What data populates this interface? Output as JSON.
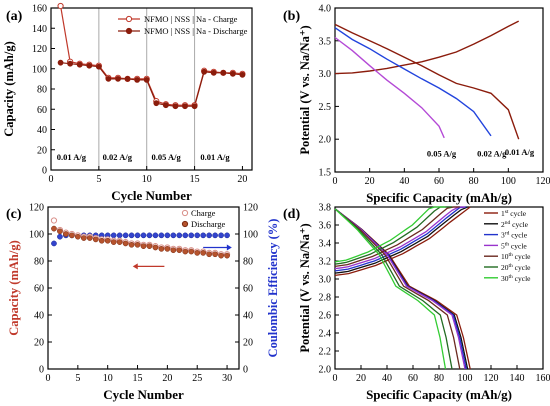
{
  "chart_data": [
    {
      "panel": "(a)",
      "type": "line",
      "xlabel": "Cycle Number",
      "ylabel": "Capacity (mAh/g)",
      "xlim": [
        0,
        21
      ],
      "ylim": [
        0,
        160
      ],
      "xticks": [
        0,
        5,
        10,
        15,
        20
      ],
      "yticks": [
        0,
        20,
        40,
        60,
        80,
        100,
        120,
        140,
        160
      ],
      "legend_position": "top-right",
      "colors": {
        "charge": "#c0392b",
        "discharge": "#8b1c0c"
      },
      "series": [
        {
          "name": "NFMO | NSS | Na - Charge",
          "marker": "open-circle",
          "x": [
            1,
            2,
            3,
            4,
            5,
            6,
            7,
            8,
            9,
            10,
            11,
            12,
            13,
            14,
            15,
            16,
            17,
            18,
            19,
            20
          ],
          "y": [
            162,
            107,
            105,
            104,
            103,
            91,
            91,
            90,
            90,
            90,
            68,
            65,
            64,
            64,
            64,
            98,
            97,
            96,
            96,
            95
          ]
        },
        {
          "name": "NFMO | NSS | Na - Discharge",
          "marker": "filled-circle",
          "x": [
            1,
            2,
            3,
            4,
            5,
            6,
            7,
            8,
            9,
            10,
            11,
            12,
            13,
            14,
            15,
            16,
            17,
            18,
            19,
            20
          ],
          "y": [
            106,
            105,
            104,
            103,
            102,
            90,
            90,
            90,
            89,
            89,
            66,
            64,
            63,
            63,
            63,
            97,
            96,
            96,
            95,
            94
          ]
        }
      ],
      "dividers": [
        5,
        10,
        15
      ],
      "annotations": [
        "0.01 A/g",
        "0.02 A/g",
        "0.05 A/g",
        "0.01 A/g"
      ]
    },
    {
      "panel": "(b)",
      "type": "line",
      "xlabel": "Specific Capacity (mAh/g)",
      "ylabel": "Potential (V vs. Na/Na⁺)",
      "xlim": [
        0,
        120
      ],
      "ylim": [
        1.5,
        4.0
      ],
      "xticks": [
        0,
        20,
        40,
        60,
        80,
        100,
        120
      ],
      "yticks": [
        1.5,
        2.0,
        2.5,
        3.0,
        3.5,
        4.0
      ],
      "series": [
        {
          "name": "0.01 A/g charge",
          "color": "#8b1c0c",
          "x": [
            0,
            10,
            20,
            30,
            40,
            50,
            60,
            70,
            80,
            90,
            100,
            106
          ],
          "y": [
            3.0,
            3.01,
            3.04,
            3.08,
            3.13,
            3.18,
            3.25,
            3.33,
            3.45,
            3.58,
            3.72,
            3.8
          ]
        },
        {
          "name": "0.01 A/g discharge",
          "color": "#8b1c0c",
          "x": [
            0,
            10,
            20,
            30,
            40,
            50,
            60,
            70,
            80,
            90,
            100,
            106
          ],
          "y": [
            3.75,
            3.62,
            3.5,
            3.38,
            3.25,
            3.12,
            2.98,
            2.85,
            2.78,
            2.7,
            2.45,
            2.0
          ]
        },
        {
          "name": "0.02 A/g",
          "color": "#2244dd",
          "x": [
            0,
            10,
            20,
            30,
            40,
            50,
            60,
            70,
            80,
            90
          ],
          "y": [
            3.7,
            3.52,
            3.38,
            3.22,
            3.07,
            2.92,
            2.78,
            2.62,
            2.42,
            2.05
          ]
        },
        {
          "name": "0.05 A/g",
          "color": "#b44ad6",
          "x": [
            0,
            10,
            20,
            30,
            40,
            50,
            60,
            63
          ],
          "y": [
            3.55,
            3.35,
            3.12,
            2.9,
            2.7,
            2.48,
            2.2,
            2.02
          ]
        }
      ],
      "annotations": [
        "0.05 A/g",
        "0.02 A/g",
        "0.01 A/g"
      ]
    },
    {
      "panel": "(c)",
      "type": "scatter",
      "xlabel": "Cycle Number",
      "ylabel": "Capacity (mAh/g)",
      "y2label": "Coulombic Efficiency (%)",
      "xlim": [
        0,
        32
      ],
      "ylim": [
        0,
        120
      ],
      "y2lim": [
        0,
        120
      ],
      "xticks": [
        0,
        5,
        10,
        15,
        20,
        25,
        30
      ],
      "yticks": [
        0,
        20,
        40,
        60,
        80,
        100,
        120
      ],
      "y2ticks": [
        0,
        20,
        40,
        60,
        80,
        100,
        120
      ],
      "legend_position": "top-right",
      "colors": {
        "charge": "#d9908a",
        "discharge": "#b5532d",
        "efficiency": "#3344cc"
      },
      "series": [
        {
          "name": "Charge",
          "axis": "left",
          "x": [
            1,
            2,
            3,
            4,
            5,
            6,
            7,
            8,
            9,
            10,
            11,
            12,
            13,
            14,
            15,
            16,
            17,
            18,
            19,
            20,
            21,
            22,
            23,
            24,
            25,
            26,
            27,
            28,
            29,
            30
          ],
          "y": [
            110,
            103,
            101,
            100,
            99,
            98,
            98,
            97,
            96,
            96,
            95,
            95,
            94,
            93,
            93,
            92,
            92,
            91,
            90,
            90,
            89,
            89,
            88,
            88,
            87,
            87,
            86,
            86,
            85,
            85
          ]
        },
        {
          "name": "Discharge",
          "axis": "left",
          "x": [
            1,
            2,
            3,
            4,
            5,
            6,
            7,
            8,
            9,
            10,
            11,
            12,
            13,
            14,
            15,
            16,
            17,
            18,
            19,
            20,
            21,
            22,
            23,
            24,
            25,
            26,
            27,
            28,
            29,
            30
          ],
          "y": [
            104,
            102,
            100,
            99,
            98,
            97,
            97,
            96,
            95,
            95,
            94,
            94,
            93,
            92,
            92,
            91,
            91,
            90,
            89,
            89,
            88,
            88,
            87,
            87,
            86,
            86,
            85,
            85,
            84,
            84
          ]
        },
        {
          "name": "Coulombic Efficiency",
          "axis": "right",
          "x": [
            1,
            2,
            3,
            4,
            5,
            6,
            7,
            8,
            9,
            10,
            11,
            12,
            13,
            14,
            15,
            16,
            17,
            18,
            19,
            20,
            21,
            22,
            23,
            24,
            25,
            26,
            27,
            28,
            29,
            30
          ],
          "y": [
            93,
            98,
            99,
            99,
            99,
            99,
            99,
            99,
            99,
            99,
            99,
            99,
            99,
            99,
            99,
            99,
            99,
            99,
            99,
            99,
            99,
            99,
            99,
            99,
            99,
            99,
            99,
            99,
            99,
            99
          ]
        }
      ]
    },
    {
      "panel": "(d)",
      "type": "line",
      "xlabel": "Specific Capacity (mAh/g)",
      "ylabel": "Potential (V vs. Na/Na⁺)",
      "xlim": [
        0,
        160
      ],
      "ylim": [
        2.0,
        3.8
      ],
      "xticks": [
        0,
        20,
        40,
        60,
        80,
        100,
        120,
        140,
        160
      ],
      "yticks": [
        2.0,
        2.2,
        2.4,
        2.6,
        2.8,
        3.0,
        3.2,
        3.4,
        3.6,
        3.8
      ],
      "legend_position": "top-right",
      "series": [
        {
          "name": "1st cycle",
          "label_main": "1",
          "label_sup": "st",
          "color": "#8b1c0c",
          "capacity": 104
        },
        {
          "name": "2nd cycle",
          "label_main": "2",
          "label_sup": "nd",
          "color": "#111111",
          "capacity": 102
        },
        {
          "name": "3rd cycle",
          "label_main": "3",
          "label_sup": "rd",
          "color": "#2233cc",
          "capacity": 101
        },
        {
          "name": "5th cycle",
          "label_main": "5",
          "label_sup": "th",
          "color": "#9933cc",
          "capacity": 100
        },
        {
          "name": "10th cycle",
          "label_main": "10",
          "label_sup": "th",
          "color": "#6b2a20",
          "capacity": 96
        },
        {
          "name": "20th cycle",
          "label_main": "20",
          "label_sup": "th",
          "color": "#226b22",
          "capacity": 90
        },
        {
          "name": "30th cycle",
          "label_main": "30",
          "label_sup": "th",
          "color": "#33cc33",
          "capacity": 85
        }
      ],
      "legend_suffix": " cycle"
    }
  ]
}
